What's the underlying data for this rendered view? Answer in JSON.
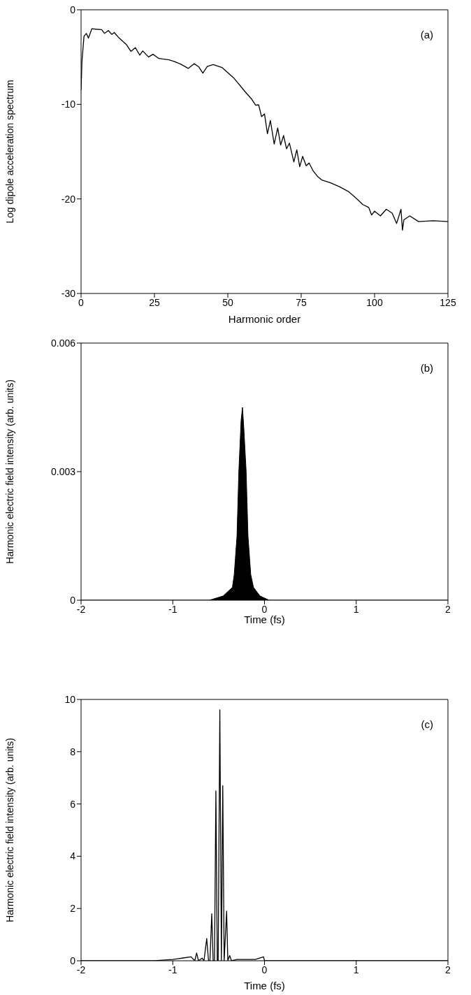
{
  "chart_data": [
    {
      "type": "line",
      "xlabel": "Harmonic order",
      "ylabel": "Log dipole acceleration spectrum",
      "xlim": [
        0,
        125
      ],
      "ylim": [
        -30,
        0
      ],
      "xticks": [
        0,
        25,
        50,
        75,
        100,
        125
      ],
      "yticks": [
        -30,
        -20,
        -10,
        0
      ],
      "annotations": [
        "(a)"
      ],
      "series": [
        {
          "color": "#000000",
          "x": [
            0,
            0.3,
            1,
            1.8,
            2.5,
            3.7,
            5,
            7,
            8,
            9.3,
            10.5,
            11.3,
            13,
            15.5,
            17,
            18.5,
            20,
            21,
            23,
            24.5,
            26.5,
            30,
            32,
            34,
            36.5,
            38.5,
            40,
            41.5,
            43,
            45,
            48,
            52,
            56,
            58,
            59.5,
            60.5,
            61.5,
            62.5,
            63.5,
            64.5,
            65.8,
            67,
            68,
            69,
            70,
            71,
            72.5,
            73.5,
            74.5,
            75.5,
            76.7,
            77.7,
            79,
            80.5,
            82,
            85,
            88,
            91,
            94,
            96,
            98,
            99,
            100,
            102,
            104,
            106,
            107.5,
            109,
            109.5,
            110,
            112,
            115,
            120,
            125
          ],
          "values": [
            -8.5,
            -5.5,
            -2.8,
            -2.5,
            -3.0,
            -2.0,
            -2.05,
            -2.1,
            -2.5,
            -2.2,
            -2.6,
            -2.4,
            -3.0,
            -3.7,
            -4.4,
            -4.0,
            -4.8,
            -4.35,
            -5.0,
            -4.7,
            -5.15,
            -5.3,
            -5.5,
            -5.75,
            -6.2,
            -5.7,
            -6.0,
            -6.7,
            -6.0,
            -5.8,
            -6.1,
            -7.2,
            -8.7,
            -9.4,
            -10.1,
            -10.05,
            -11.3,
            -11.0,
            -13.1,
            -11.7,
            -14.2,
            -12.5,
            -14.3,
            -13.3,
            -14.7,
            -14.1,
            -16.1,
            -14.8,
            -16.6,
            -15.5,
            -16.5,
            -16.2,
            -17.0,
            -17.6,
            -18.0,
            -18.3,
            -18.7,
            -19.2,
            -20.0,
            -20.6,
            -20.9,
            -21.7,
            -21.3,
            -21.8,
            -21.1,
            -21.5,
            -22.6,
            -21.1,
            -23.3,
            -22.2,
            -21.8,
            -22.4,
            -22.3,
            -22.4
          ]
        }
      ]
    },
    {
      "type": "area",
      "xlabel": "Time (fs)",
      "ylabel": "Harmonic electric field intensity (arb. units)",
      "xlim": [
        -2,
        2
      ],
      "ylim": [
        0,
        0.006
      ],
      "xticks": [
        -2,
        -1,
        0,
        1,
        2
      ],
      "yticks": [
        0,
        0.003,
        0.006
      ],
      "annotations": [
        "(b)"
      ],
      "series": [
        {
          "color": "#000000",
          "x": [
            -2,
            -0.6,
            -0.45,
            -0.35,
            -0.33,
            -0.3,
            -0.28,
            -0.255,
            -0.24,
            -0.225,
            -0.2,
            -0.18,
            -0.15,
            -0.12,
            -0.05,
            0.05,
            2
          ],
          "values": [
            0,
            0,
            0.0001,
            0.0003,
            0.0006,
            0.0015,
            0.003,
            0.0042,
            0.0045,
            0.004,
            0.003,
            0.0015,
            0.0006,
            0.0003,
            0.0001,
            0,
            0
          ]
        }
      ]
    },
    {
      "type": "line",
      "xlabel": "Time (fs)",
      "ylabel": "Harmonic electric field intensity (arb. units)",
      "xlim": [
        -2,
        2
      ],
      "ylim": [
        0,
        10
      ],
      "xticks": [
        -2,
        -1,
        0,
        1,
        2
      ],
      "yticks": [
        0,
        2,
        4,
        6,
        8,
        10
      ],
      "annotations": [
        "(c)"
      ],
      "series": [
        {
          "color": "#000000",
          "x": [
            -2,
            -1.2,
            -1.0,
            -0.9,
            -0.8,
            -0.76,
            -0.74,
            -0.72,
            -0.68,
            -0.66,
            -0.63,
            -0.61,
            -0.595,
            -0.575,
            -0.56,
            -0.545,
            -0.53,
            -0.515,
            -0.505,
            -0.487,
            -0.47,
            -0.455,
            -0.44,
            -0.413,
            -0.4,
            -0.38,
            -0.36,
            -0.3,
            -0.1,
            -0.01,
            0,
            2
          ],
          "values": [
            0,
            0,
            0.05,
            0.1,
            0.15,
            0,
            0.3,
            0,
            0.1,
            0,
            0.85,
            0,
            0,
            1.8,
            0,
            0,
            6.5,
            0,
            0,
            9.6,
            0,
            6.7,
            0,
            1.9,
            0,
            0.2,
            0,
            0.05,
            0.05,
            0.15,
            0,
            0
          ]
        }
      ]
    }
  ]
}
